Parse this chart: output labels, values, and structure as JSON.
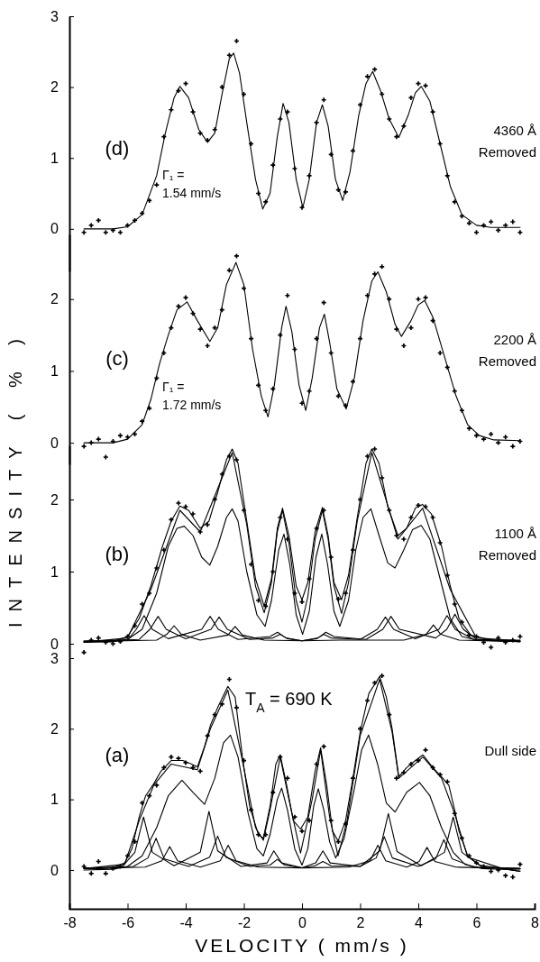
{
  "chart_data": [
    {
      "type": "line",
      "title": "(d)",
      "xlim": [
        -8,
        8
      ],
      "ylim": [
        -0.6,
        3
      ],
      "yticks": [
        0,
        1,
        2,
        3
      ],
      "tick_labels": "y",
      "annotations": [
        "4360 Å Removed",
        "Γ₁ = 1.54 mm/s"
      ],
      "series": [
        {
          "type": "scatter",
          "marker": "cross",
          "color": "#000000",
          "x": [
            -7.5,
            -7.25,
            -7,
            -6.75,
            -6.5,
            -6.25,
            -6,
            -5.75,
            -5.5,
            -5.25,
            -5,
            -4.75,
            -4.5,
            -4.25,
            -4,
            -3.75,
            -3.5,
            -3.25,
            -3,
            -2.75,
            -2.5,
            -2.25,
            -2,
            -1.75,
            -1.5,
            -1.25,
            -1,
            -0.75,
            -0.5,
            -0.25,
            0,
            0.25,
            0.5,
            0.75,
            1,
            1.25,
            1.5,
            1.75,
            2,
            2.25,
            2.5,
            2.75,
            3,
            3.25,
            3.5,
            3.75,
            4,
            4.25,
            4.5,
            4.75,
            5,
            5.25,
            5.5,
            5.75,
            6,
            6.25,
            6.5,
            6.75,
            7,
            7.25,
            7.5
          ],
          "values": [
            -0.05,
            0.05,
            0.12,
            -0.05,
            -0.02,
            -0.05,
            0.05,
            0.12,
            0.22,
            0.4,
            0.62,
            1.3,
            1.68,
            1.95,
            2.05,
            1.65,
            1.35,
            1.25,
            1.4,
            2,
            2.45,
            2.65,
            1.9,
            1.2,
            0.5,
            0.38,
            0.9,
            1.55,
            1.65,
            0.85,
            0.3,
            0.75,
            1.5,
            1.82,
            1.05,
            0.55,
            0.52,
            1.1,
            1.75,
            2.15,
            2.25,
            1.9,
            1.55,
            1.3,
            1.45,
            1.85,
            2.05,
            2.02,
            1.65,
            1.2,
            0.75,
            0.38,
            0.18,
            0.08,
            -0.05,
            0.05,
            0.1,
            -0.02,
            0.05,
            0.1,
            -0.05
          ]
        },
        {
          "color": "#000000",
          "x": [
            -7.5,
            -6.5,
            -6,
            -5.5,
            -5,
            -4.7,
            -4.4,
            -4.2,
            -3.9,
            -3.55,
            -3.25,
            -3,
            -2.75,
            -2.5,
            -2.35,
            -2.15,
            -1.9,
            -1.6,
            -1.35,
            -1.1,
            -0.85,
            -0.65,
            -0.45,
            -0.2,
            0.03,
            0.25,
            0.5,
            0.7,
            0.9,
            1.15,
            1.4,
            1.65,
            1.95,
            2.2,
            2.43,
            2.7,
            3,
            3.33,
            3.65,
            3.9,
            4.1,
            4.4,
            4.75,
            5.1,
            5.5,
            6,
            6.5,
            7.5
          ],
          "values": [
            0,
            0,
            0.03,
            0.2,
            0.75,
            1.35,
            1.85,
            2.01,
            1.85,
            1.4,
            1.22,
            1.35,
            1.9,
            2.4,
            2.48,
            2.2,
            1.5,
            0.7,
            0.28,
            0.5,
            1.3,
            1.77,
            1.5,
            0.7,
            0.3,
            0.7,
            1.5,
            1.75,
            1.45,
            0.7,
            0.4,
            0.8,
            1.6,
            2.05,
            2.22,
            1.95,
            1.55,
            1.29,
            1.6,
            1.92,
            2.01,
            1.8,
            1.2,
            0.6,
            0.2,
            0.05,
            0.02,
            0.02
          ]
        }
      ]
    },
    {
      "type": "line",
      "title": "(c)",
      "ylabel": "INTENSITY ( % )",
      "xlim": [
        -8,
        8
      ],
      "ylim": [
        -0.3,
        2.9
      ],
      "yticks": [
        0,
        1,
        2
      ],
      "tick_labels": "y",
      "annotations": [
        "2200 Å Removed",
        "Γ₁ = 1.72 mm/s"
      ],
      "series": [
        {
          "type": "scatter",
          "marker": "cross",
          "color": "#000000",
          "x": [
            -7.5,
            -7.25,
            -7,
            -6.75,
            -6.5,
            -6.25,
            -6,
            -5.75,
            -5.5,
            -5.25,
            -5,
            -4.75,
            -4.5,
            -4.25,
            -4,
            -3.75,
            -3.5,
            -3.25,
            -3,
            -2.75,
            -2.5,
            -2.25,
            -2,
            -1.75,
            -1.5,
            -1.25,
            -1,
            -0.75,
            -0.5,
            -0.25,
            0,
            0.25,
            0.5,
            0.75,
            1,
            1.25,
            1.5,
            1.75,
            2,
            2.25,
            2.5,
            2.75,
            3,
            3.25,
            3.5,
            3.75,
            4,
            4.25,
            4.5,
            4.75,
            5,
            5.25,
            5.5,
            5.75,
            6,
            6.25,
            6.5,
            6.75,
            7,
            7.25,
            7.5
          ],
          "values": [
            -0.05,
            0,
            0.05,
            -0.2,
            0.02,
            0.1,
            0.08,
            0.12,
            0.3,
            0.48,
            0.9,
            1.25,
            1.6,
            1.9,
            2.02,
            1.8,
            1.58,
            1.35,
            1.6,
            1.85,
            2.4,
            2.6,
            2.15,
            1.45,
            0.8,
            0.45,
            0.75,
            1.5,
            2.05,
            1.3,
            0.55,
            0.72,
            1.45,
            1.95,
            1.25,
            0.65,
            0.52,
            0.85,
            1.45,
            2.05,
            2.35,
            2.45,
            2,
            1.58,
            1.35,
            1.6,
            2,
            2.02,
            1.7,
            1.25,
            1.05,
            0.72,
            0.45,
            0.2,
            0.1,
            0.05,
            0.12,
            0,
            0.08,
            -0.05,
            0.02
          ]
        },
        {
          "color": "#000000",
          "x": [
            -7.5,
            -6.5,
            -6,
            -5.5,
            -5.2,
            -4.9,
            -4.6,
            -4.3,
            -3.95,
            -3.6,
            -3.17,
            -2.9,
            -2.6,
            -2.27,
            -2,
            -1.7,
            -1.4,
            -1.17,
            -0.95,
            -0.7,
            -0.55,
            -0.35,
            -0.1,
            0.13,
            0.35,
            0.6,
            0.77,
            0.95,
            1.2,
            1.52,
            1.8,
            2.1,
            2.4,
            2.61,
            2.9,
            3.2,
            3.42,
            3.75,
            4,
            4.22,
            4.5,
            4.9,
            5.3,
            5.7,
            6.1,
            6.6,
            7.5
          ],
          "values": [
            0,
            0,
            0.05,
            0.25,
            0.6,
            1.1,
            1.5,
            1.85,
            1.96,
            1.7,
            1.41,
            1.6,
            2.2,
            2.51,
            2.2,
            1.3,
            0.65,
            0.36,
            0.8,
            1.6,
            1.9,
            1.55,
            0.8,
            0.45,
            0.9,
            1.6,
            1.79,
            1.4,
            0.75,
            0.47,
            0.9,
            1.7,
            2.25,
            2.38,
            2.1,
            1.65,
            1.48,
            1.7,
            1.92,
            1.98,
            1.75,
            1.2,
            0.65,
            0.25,
            0.1,
            0.04,
            0.03
          ]
        }
      ]
    },
    {
      "type": "line",
      "title": "(b)",
      "xlim": [
        -8,
        8
      ],
      "ylim": [
        -0.2,
        2.75
      ],
      "yticks": [
        0,
        1,
        2
      ],
      "tick_labels": "y",
      "annotations": [
        "1100 Å Removed"
      ],
      "series": [
        {
          "type": "scatter",
          "marker": "cross",
          "color": "#000000",
          "x": [
            -7.5,
            -7.25,
            -7,
            -6.75,
            -6.5,
            -6.25,
            -6,
            -5.75,
            -5.5,
            -5.25,
            -5,
            -4.75,
            -4.5,
            -4.25,
            -4,
            -3.75,
            -3.5,
            -3.25,
            -3,
            -2.75,
            -2.5,
            -2.25,
            -2,
            -1.75,
            -1.5,
            -1.25,
            -1,
            -0.75,
            -0.5,
            -0.25,
            0,
            0.25,
            0.5,
            0.75,
            1,
            1.25,
            1.5,
            1.75,
            2,
            2.25,
            2.5,
            2.75,
            3,
            3.25,
            3.5,
            3.75,
            4,
            4.25,
            4.5,
            4.75,
            5,
            5.25,
            5.5,
            5.75,
            6,
            6.25,
            6.5,
            6.75,
            7,
            7.25,
            7.5
          ],
          "values": [
            -0.12,
            0.05,
            0.08,
            0.02,
            0,
            0.03,
            0.1,
            0.25,
            0.55,
            0.7,
            1.05,
            1.3,
            1.72,
            1.95,
            1.9,
            1.8,
            1.55,
            1.65,
            2,
            2.35,
            2.6,
            2.55,
            1.85,
            1.1,
            0.6,
            0.52,
            1,
            1.75,
            1.45,
            0.7,
            0.58,
            0.9,
            1.6,
            1.85,
            1.2,
            0.62,
            0.7,
            1.3,
            2,
            2.6,
            2.7,
            2.3,
            1.85,
            1.5,
            1.45,
            1.75,
            1.92,
            1.9,
            1.75,
            1.4,
            0.95,
            0.55,
            0.3,
            0.12,
            0.1,
            0.02,
            -0.05,
            0.08,
            0.02,
            0.05,
            0.1
          ]
        },
        {
          "color": "#000000",
          "x": [
            -7.5,
            -6.5,
            -6,
            -5.6,
            -5.2,
            -4.8,
            -4.5,
            -4.2,
            -3.9,
            -3.5,
            -3.2,
            -2.9,
            -2.6,
            -2.4,
            -2.2,
            -1.9,
            -1.6,
            -1.3,
            -1.05,
            -0.85,
            -0.67,
            -0.45,
            -0.2,
            0,
            0.2,
            0.45,
            0.7,
            0.9,
            1.1,
            1.36,
            1.6,
            1.9,
            2.2,
            2.4,
            2.65,
            2.95,
            3.3,
            3.6,
            3.9,
            4.15,
            4.45,
            4.8,
            5.1,
            5.4,
            5.8,
            6.5,
            7.5
          ],
          "values": [
            0.02,
            0.03,
            0.1,
            0.35,
            0.8,
            1.35,
            1.7,
            1.91,
            1.85,
            1.6,
            1.7,
            2.1,
            2.55,
            2.7,
            2.5,
            1.7,
            0.9,
            0.52,
            0.9,
            1.6,
            1.88,
            1.5,
            0.8,
            0.61,
            0.85,
            1.55,
            1.89,
            1.5,
            0.85,
            0.61,
            0.95,
            1.75,
            2.5,
            2.7,
            2.5,
            1.9,
            1.5,
            1.6,
            1.88,
            1.93,
            1.8,
            1.35,
            0.8,
            0.35,
            0.12,
            0.05,
            0.05
          ]
        },
        {
          "color": "#000000",
          "x": [
            -7.5,
            -6,
            -5.2,
            -4.2,
            -3.5,
            -2.4,
            -1.9,
            -1.6,
            -1.3,
            -1.05,
            -0.85,
            -0.67,
            -0.45,
            -0.2,
            0,
            0.2,
            0.45,
            0.7,
            0.9,
            1.1,
            1.36,
            1.6,
            1.9,
            2.4,
            3.3,
            4.15,
            5.1,
            6,
            7.5
          ],
          "values": [
            0.02,
            0.08,
            0.75,
            1.85,
            1.55,
            2.65,
            1.65,
            0.8,
            0.43,
            0.85,
            1.55,
            1.85,
            1.4,
            0.6,
            0.3,
            0.65,
            1.45,
            1.85,
            1.45,
            0.8,
            0.42,
            0.85,
            1.7,
            2.65,
            1.45,
            1.88,
            0.75,
            0.08,
            0.04
          ]
        },
        {
          "color": "#000000",
          "x": [
            -7.5,
            -6.5,
            -6,
            -5.5,
            -5,
            -4.6,
            -4.3,
            -4.05,
            -3.75,
            -3.45,
            -3.17,
            -2.9,
            -2.6,
            -2.4,
            -2.2,
            -1.9,
            -1.55,
            -1.27,
            -1.05,
            -0.8,
            -0.62,
            -0.42,
            -0.2,
            0.02,
            0.25,
            0.48,
            0.68,
            0.88,
            1.1,
            1.3,
            1.6,
            1.85,
            2.1,
            2.37,
            2.65,
            2.95,
            3.2,
            3.5,
            3.8,
            4.1,
            4.4,
            4.75,
            5.1,
            5.5,
            6,
            7.5
          ],
          "values": [
            0.03,
            0.03,
            0.06,
            0.2,
            0.7,
            1.35,
            1.6,
            1.63,
            1.5,
            1.2,
            1.09,
            1.35,
            1.75,
            1.87,
            1.7,
            1,
            0.4,
            0.24,
            0.6,
            1.3,
            1.52,
            1.1,
            0.4,
            0.13,
            0.45,
            1.2,
            1.52,
            1.1,
            0.45,
            0.24,
            0.6,
            1.3,
            1.75,
            1.87,
            1.5,
            1.12,
            1.05,
            1.3,
            1.58,
            1.64,
            1.45,
            0.9,
            0.35,
            0.1,
            0.05,
            0.03
          ]
        },
        {
          "color": "#000000",
          "x": [
            -7.5,
            -6,
            -5.7,
            -5.43,
            -5.15,
            -4.6,
            -3.45,
            -3.16,
            -2.88,
            -2.2,
            -1.1,
            -0.84,
            -0.55,
            0,
            0.55,
            0.82,
            1.1,
            2.2,
            2.78,
            3.06,
            3.35,
            4.6,
            4.98,
            5.26,
            5.55,
            6,
            7.5
          ],
          "values": [
            0.04,
            0.05,
            0.2,
            0.39,
            0.2,
            0.07,
            0.2,
            0.38,
            0.2,
            0.06,
            0.1,
            0.16,
            0.08,
            0.04,
            0.08,
            0.16,
            0.1,
            0.06,
            0.2,
            0.38,
            0.2,
            0.08,
            0.2,
            0.41,
            0.2,
            0.06,
            0.04
          ]
        },
        {
          "color": "#000000",
          "x": [
            -7.5,
            -5.6,
            -5.23,
            -4.95,
            -4.67,
            -4,
            -3.13,
            -2.85,
            -2.57,
            -1.8,
            -1,
            -0.75,
            -0.5,
            0,
            0.5,
            0.75,
            1,
            2,
            2.59,
            2.87,
            3.15,
            3.9,
            4.71,
            4.99,
            5.27,
            5.9,
            7.5
          ],
          "values": [
            0.03,
            0.06,
            0.2,
            0.38,
            0.2,
            0.07,
            0.2,
            0.37,
            0.2,
            0.06,
            0.08,
            0.13,
            0.07,
            0.04,
            0.07,
            0.13,
            0.08,
            0.06,
            0.2,
            0.37,
            0.2,
            0.07,
            0.2,
            0.39,
            0.2,
            0.06,
            0.03
          ]
        },
        {
          "color": "#000000",
          "x": [
            -7.5,
            -5,
            -4.65,
            -4.4,
            -4.15,
            -3.5,
            -2.55,
            -2.3,
            -2.05,
            -1.3,
            0,
            1.3,
            3.5,
            4.27,
            4.52,
            4.77,
            5.4,
            7.5
          ],
          "values": [
            0.03,
            0.05,
            0.13,
            0.25,
            0.13,
            0.05,
            0.12,
            0.24,
            0.12,
            0.05,
            0.04,
            0.05,
            0.05,
            0.13,
            0.26,
            0.13,
            0.05,
            0.03
          ]
        }
      ]
    },
    {
      "type": "line",
      "title": "(a)",
      "xlabel": "VELOCITY ( mm/s )",
      "xlim": [
        -8,
        8
      ],
      "xticks": [
        -8,
        -6,
        -4,
        -2,
        0,
        2,
        4,
        6,
        8
      ],
      "ylim": [
        -0.55,
        3
      ],
      "yticks": [
        0,
        1,
        2,
        3
      ],
      "annotations": [
        "T$_{A}$ = 690 K",
        "Dull side"
      ],
      "series": [
        {
          "type": "scatter",
          "marker": "cross",
          "color": "#000000",
          "x": [
            -7.5,
            -7.25,
            -7,
            -6.75,
            -6.5,
            -6.25,
            -6,
            -5.75,
            -5.5,
            -5.25,
            -5,
            -4.75,
            -4.5,
            -4.25,
            -4,
            -3.75,
            -3.5,
            -3.25,
            -3,
            -2.75,
            -2.5,
            -2.25,
            -2,
            -1.75,
            -1.5,
            -1.25,
            -1,
            -0.75,
            -0.5,
            -0.25,
            0,
            0.25,
            0.5,
            0.75,
            1,
            1.25,
            1.5,
            1.75,
            2,
            2.25,
            2.5,
            2.75,
            3,
            3.25,
            3.5,
            3.75,
            4,
            4.25,
            4.5,
            4.75,
            5,
            5.25,
            5.5,
            5.75,
            6,
            6.25,
            6.5,
            6.75,
            7,
            7.25,
            7.5
          ],
          "values": [
            0.05,
            -0.05,
            0.12,
            -0.05,
            0.02,
            0.05,
            0.2,
            0.4,
            0.95,
            1.05,
            1.2,
            1.45,
            1.6,
            1.58,
            1.52,
            1.45,
            1.4,
            1.9,
            2.2,
            2.35,
            2.7,
            2.3,
            1.55,
            0.85,
            0.5,
            0.5,
            1.1,
            1.6,
            1.3,
            0.75,
            0.55,
            0.7,
            1.5,
            1.75,
            0.7,
            0.4,
            0.65,
            1.3,
            2,
            2.4,
            2.65,
            2.75,
            2.2,
            1.3,
            1.38,
            1.5,
            1.55,
            1.7,
            1.45,
            1.35,
            1.25,
            0.8,
            0.45,
            0.2,
            0.1,
            0.05,
            -0.02,
            0,
            -0.08,
            -0.1,
            0.08
          ]
        },
        {
          "color": "#000000",
          "x": [
            -7.5,
            -7,
            -6.5,
            -6.1,
            -5.85,
            -5.6,
            -5.38,
            -5.1,
            -4.85,
            -4.5,
            -4.1,
            -3.8,
            -3.6,
            -3.35,
            -3.15,
            -2.9,
            -2.55,
            -2.3,
            -2.05,
            -1.8,
            -1.5,
            -1.33,
            -1.1,
            -0.9,
            -0.75,
            -0.55,
            -0.3,
            -0.05,
            0.2,
            0.45,
            0.64,
            0.85,
            1.05,
            1.24,
            1.5,
            1.75,
            2,
            2.3,
            2.67,
            2.9,
            3.1,
            3.33,
            3.6,
            3.9,
            4.16,
            4.5,
            4.8,
            5.05,
            5.25,
            5.4,
            5.7,
            6.1,
            6.9,
            7.5
          ],
          "values": [
            0.03,
            0.02,
            0.03,
            0.1,
            0.3,
            0.75,
            1.05,
            1.22,
            1.4,
            1.55,
            1.55,
            1.5,
            1.46,
            1.75,
            2.05,
            2.3,
            2.6,
            2.45,
            1.6,
            0.9,
            0.5,
            0.45,
            0.9,
            1.5,
            1.63,
            1.25,
            0.7,
            0.58,
            0.75,
            1.4,
            1.73,
            1.2,
            0.55,
            0.41,
            0.7,
            1.3,
            1.95,
            2.5,
            2.74,
            2.45,
            2,
            1.32,
            1.45,
            1.55,
            1.63,
            1.45,
            1.32,
            1.2,
            0.85,
            0.55,
            0.2,
            0.07,
            0.02,
            -0.02
          ]
        },
        {
          "color": "#000000",
          "x": [
            -7.5,
            -6.1,
            -5.6,
            -5.1,
            -4.5,
            -3.6,
            -3.15,
            -2.55,
            -2.05,
            -1.6,
            -1.33,
            -1.1,
            -0.75,
            -0.45,
            -0.05,
            0.35,
            0.64,
            0.95,
            1.24,
            1.55,
            2,
            2.67,
            3.1,
            3.33,
            4.16,
            4.8,
            5.25,
            5.7,
            6.9,
            7.5
          ],
          "values": [
            0.02,
            0.08,
            0.7,
            1.2,
            1.5,
            1.42,
            2,
            2.55,
            1.55,
            0.6,
            0.42,
            0.85,
            1.6,
            1,
            0.24,
            1,
            1.7,
            0.75,
            0.2,
            0.7,
            1.9,
            2.7,
            1.95,
            1.3,
            1.6,
            1.3,
            0.8,
            0.18,
            0.02,
            -0.02
          ]
        },
        {
          "color": "#000000",
          "x": [
            -7.5,
            -6.5,
            -6,
            -5.5,
            -5,
            -4.6,
            -4.13,
            -3.75,
            -3.35,
            -3,
            -2.7,
            -2.46,
            -2.2,
            -1.85,
            -1.55,
            -1.33,
            -1.1,
            -0.85,
            -0.7,
            -0.5,
            -0.25,
            0,
            0.2,
            0.4,
            0.56,
            0.75,
            0.95,
            1.16,
            1.45,
            1.8,
            2.05,
            2.29,
            2.6,
            2.9,
            3.2,
            3.6,
            4.04,
            4.4,
            4.8,
            5.2,
            5.6,
            6.2,
            7.5
          ],
          "values": [
            0,
            0.01,
            0.05,
            0.2,
            0.6,
            1.05,
            1.27,
            1.1,
            0.93,
            1.3,
            1.8,
            1.91,
            1.6,
            0.8,
            0.3,
            0.2,
            0.5,
            1,
            1.16,
            0.85,
            0.3,
            0.07,
            0.3,
            0.9,
            1.15,
            0.85,
            0.4,
            0.17,
            0.45,
            1.15,
            1.7,
            1.91,
            1.5,
            0.95,
            0.82,
            1.1,
            1.24,
            1.05,
            0.6,
            0.25,
            0.08,
            0.02,
            0
          ]
        },
        {
          "color": "#000000",
          "x": [
            -7.5,
            -6.2,
            -5.75,
            -5.45,
            -5.15,
            -4.4,
            -3.5,
            -3.2,
            -2.9,
            -2.1,
            -1.2,
            -0.97,
            -0.7,
            0,
            0.47,
            0.72,
            0.97,
            2,
            2.67,
            2.97,
            3.27,
            4.1,
            4.9,
            5.2,
            5.5,
            6.2,
            7.5
          ],
          "values": [
            0.02,
            0.04,
            0.25,
            0.75,
            0.25,
            0.06,
            0.25,
            0.83,
            0.27,
            0.05,
            0.1,
            0.27,
            0.1,
            0.03,
            0.1,
            0.27,
            0.1,
            0.05,
            0.27,
            0.8,
            0.26,
            0.06,
            0.25,
            0.75,
            0.25,
            0.04,
            0.02
          ]
        },
        {
          "color": "#000000",
          "x": [
            -7.5,
            -5.8,
            -5.3,
            -5.02,
            -4.74,
            -3.9,
            -3.18,
            -2.9,
            -2.62,
            -1.8,
            -1.1,
            -0.85,
            -0.6,
            0,
            0.45,
            0.72,
            1,
            2,
            2.55,
            2.83,
            3.11,
            4,
            4.6,
            4.88,
            5.16,
            5.9,
            7.5
          ],
          "values": [
            0.02,
            0.05,
            0.17,
            0.45,
            0.16,
            0.05,
            0.18,
            0.48,
            0.18,
            0.05,
            0.07,
            0.15,
            0.07,
            0.03,
            0.06,
            0.12,
            0.06,
            0.05,
            0.17,
            0.47,
            0.17,
            0.05,
            0.16,
            0.43,
            0.16,
            0.04,
            0.02
          ]
        },
        {
          "color": "#000000",
          "x": [
            -7.5,
            -5.4,
            -4.82,
            -4.55,
            -4.28,
            -3.5,
            -2.81,
            -2.54,
            -2.27,
            -1.5,
            0,
            1.6,
            2.34,
            2.61,
            2.88,
            3.6,
            4.03,
            4.3,
            4.57,
            5.3,
            7.5
          ],
          "values": [
            0.02,
            0.04,
            0.13,
            0.33,
            0.13,
            0.04,
            0.13,
            0.35,
            0.13,
            0.04,
            0.03,
            0.04,
            0.13,
            0.35,
            0.13,
            0.04,
            0.12,
            0.32,
            0.12,
            0.04,
            0.02
          ]
        }
      ]
    }
  ]
}
